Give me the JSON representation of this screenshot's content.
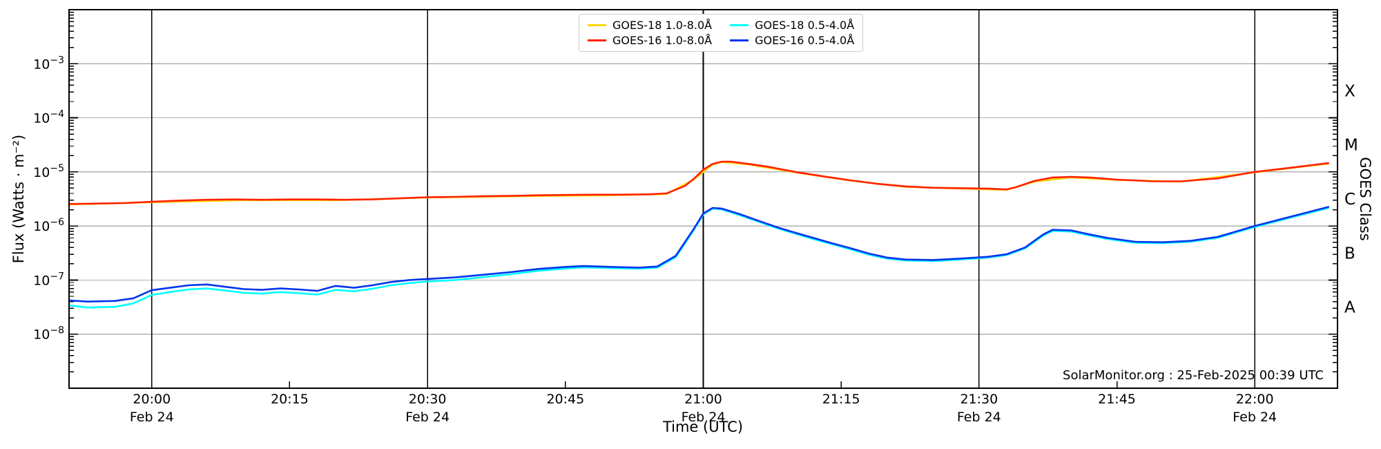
{
  "chart_data": {
    "type": "line",
    "xlabel": "Time (UTC)",
    "ylabel": "Flux (Watts · m⁻²)",
    "ylabel_right": "GOES Class",
    "annotation": "SolarMonitor.org : 25-Feb-2025 00:39 UTC",
    "grid": {
      "horizontal": true,
      "vertical": true
    },
    "legend_position": "top-center",
    "legend_columns": 2,
    "x_range": {
      "start": "19:51",
      "end": "22:09"
    },
    "y_log_range": {
      "top_exponent": -2,
      "bottom_exponent": -9
    },
    "y_tick_exponents": [
      -3,
      -4,
      -5,
      -6,
      -7,
      -8
    ],
    "x_ticks": [
      {
        "time": "20:00",
        "date": "Feb 24",
        "major": true
      },
      {
        "time": "20:15",
        "major": false
      },
      {
        "time": "20:30",
        "date": "Feb 24",
        "major": true
      },
      {
        "time": "20:45",
        "major": false
      },
      {
        "time": "21:00",
        "date": "Feb 24",
        "major": true
      },
      {
        "time": "21:15",
        "major": false
      },
      {
        "time": "21:30",
        "date": "Feb 24",
        "major": true
      },
      {
        "time": "21:45",
        "major": false
      },
      {
        "time": "22:00",
        "date": "Feb 24",
        "major": true
      }
    ],
    "goes_classes": [
      {
        "label": "A",
        "between_exponents": [
          -8,
          -7
        ]
      },
      {
        "label": "B",
        "between_exponents": [
          -7,
          -6
        ]
      },
      {
        "label": "C",
        "between_exponents": [
          -6,
          -5
        ]
      },
      {
        "label": "M",
        "between_exponents": [
          -5,
          -4
        ]
      },
      {
        "label": "X",
        "between_exponents": [
          -4,
          -3
        ]
      }
    ],
    "series": [
      {
        "name": "GOES-18 1.0-8.0Å",
        "color": "#ffd700",
        "points": [
          [
            "19:51",
            2.5e-06
          ],
          [
            "20:00",
            2.75e-06
          ],
          [
            "20:10",
            3e-06
          ],
          [
            "20:20",
            3e-06
          ],
          [
            "20:30",
            3.35e-06
          ],
          [
            "20:40",
            3.55e-06
          ],
          [
            "20:50",
            3.7e-06
          ],
          [
            "20:56",
            3.9e-06
          ],
          [
            "20:59",
            7.3e-06
          ],
          [
            "21:01",
            1.37e-05
          ],
          [
            "21:02",
            1.52e-05
          ],
          [
            "21:05",
            1.37e-05
          ],
          [
            "21:10",
            9.8e-06
          ],
          [
            "21:16",
            6.9e-06
          ],
          [
            "21:22",
            5.3e-06
          ],
          [
            "21:30",
            4.8e-06
          ],
          [
            "21:33",
            4.65e-06
          ],
          [
            "21:36",
            6.6e-06
          ],
          [
            "21:40",
            7.9e-06
          ],
          [
            "21:45",
            7.1e-06
          ],
          [
            "21:52",
            6.6e-06
          ],
          [
            "22:00",
            9.8e-06
          ],
          [
            "22:08",
            1.42e-05
          ]
        ]
      },
      {
        "name": "GOES-16 1.0-8.0Å",
        "color": "#ff2200",
        "points": [
          [
            "19:51",
            2.55e-06
          ],
          [
            "19:54",
            2.6e-06
          ],
          [
            "19:57",
            2.65e-06
          ],
          [
            "20:00",
            2.8e-06
          ],
          [
            "20:03",
            2.95e-06
          ],
          [
            "20:06",
            3.05e-06
          ],
          [
            "20:09",
            3.1e-06
          ],
          [
            "20:12",
            3.05e-06
          ],
          [
            "20:15",
            3.1e-06
          ],
          [
            "20:18",
            3.1e-06
          ],
          [
            "20:21",
            3.05e-06
          ],
          [
            "20:24",
            3.1e-06
          ],
          [
            "20:27",
            3.25e-06
          ],
          [
            "20:30",
            3.4e-06
          ],
          [
            "20:33",
            3.45e-06
          ],
          [
            "20:36",
            3.55e-06
          ],
          [
            "20:39",
            3.6e-06
          ],
          [
            "20:42",
            3.7e-06
          ],
          [
            "20:45",
            3.75e-06
          ],
          [
            "20:48",
            3.8e-06
          ],
          [
            "20:51",
            3.8e-06
          ],
          [
            "20:54",
            3.85e-06
          ],
          [
            "20:56",
            4e-06
          ],
          [
            "20:58",
            5.5e-06
          ],
          [
            "20:59",
            7.5e-06
          ],
          [
            "21:00",
            1.1e-05
          ],
          [
            "21:01",
            1.4e-05
          ],
          [
            "21:02",
            1.55e-05
          ],
          [
            "21:03",
            1.55e-05
          ],
          [
            "21:05",
            1.4e-05
          ],
          [
            "21:07",
            1.25e-05
          ],
          [
            "21:10",
            1e-05
          ],
          [
            "21:13",
            8.3e-06
          ],
          [
            "21:16",
            7e-06
          ],
          [
            "21:19",
            6e-06
          ],
          [
            "21:22",
            5.4e-06
          ],
          [
            "21:25",
            5.1e-06
          ],
          [
            "21:28",
            5e-06
          ],
          [
            "21:31",
            4.9e-06
          ],
          [
            "21:33",
            4.75e-06
          ],
          [
            "21:34",
            5.2e-06
          ],
          [
            "21:36",
            6.8e-06
          ],
          [
            "21:38",
            7.9e-06
          ],
          [
            "21:40",
            8.1e-06
          ],
          [
            "21:42",
            7.9e-06
          ],
          [
            "21:45",
            7.2e-06
          ],
          [
            "21:49",
            6.7e-06
          ],
          [
            "21:52",
            6.7e-06
          ],
          [
            "21:56",
            7.6e-06
          ],
          [
            "22:00",
            1e-05
          ],
          [
            "22:04",
            1.2e-05
          ],
          [
            "22:08",
            1.45e-05
          ]
        ]
      },
      {
        "name": "GOES-18 0.5-4.0Å",
        "color": "#00ffff",
        "points": [
          [
            "19:51",
            3.4e-08
          ],
          [
            "19:53",
            3.1e-08
          ],
          [
            "19:56",
            3.2e-08
          ],
          [
            "19:58",
            3.7e-08
          ],
          [
            "20:00",
            5.3e-08
          ],
          [
            "20:02",
            6e-08
          ],
          [
            "20:04",
            6.7e-08
          ],
          [
            "20:06",
            7e-08
          ],
          [
            "20:08",
            6.4e-08
          ],
          [
            "20:10",
            5.8e-08
          ],
          [
            "20:12",
            5.6e-08
          ],
          [
            "20:14",
            6e-08
          ],
          [
            "20:16",
            5.7e-08
          ],
          [
            "20:18",
            5.4e-08
          ],
          [
            "20:20",
            6.6e-08
          ],
          [
            "20:22",
            6.2e-08
          ],
          [
            "20:24",
            6.9e-08
          ],
          [
            "20:26",
            8e-08
          ],
          [
            "20:28",
            8.8e-08
          ],
          [
            "20:30",
            9.4e-08
          ],
          [
            "20:33",
            1e-07
          ],
          [
            "20:36",
            1.13e-07
          ],
          [
            "20:39",
            1.28e-07
          ],
          [
            "20:42",
            1.48e-07
          ],
          [
            "20:45",
            1.63e-07
          ],
          [
            "20:47",
            1.72e-07
          ],
          [
            "20:50",
            1.66e-07
          ],
          [
            "20:53",
            1.62e-07
          ],
          [
            "20:55",
            1.7e-07
          ],
          [
            "20:57",
            2.65e-07
          ],
          [
            "20:59",
            8.6e-07
          ],
          [
            "21:00",
            1.63e-06
          ],
          [
            "21:01",
            2.08e-06
          ],
          [
            "21:02",
            2.03e-06
          ],
          [
            "21:04",
            1.58e-06
          ],
          [
            "21:06",
            1.2e-06
          ],
          [
            "21:08",
            9.1e-07
          ],
          [
            "21:10",
            7.2e-07
          ],
          [
            "21:12",
            5.7e-07
          ],
          [
            "21:14",
            4.6e-07
          ],
          [
            "21:16",
            3.7e-07
          ],
          [
            "21:18",
            2.95e-07
          ],
          [
            "21:20",
            2.5e-07
          ],
          [
            "21:22",
            2.3e-07
          ],
          [
            "21:25",
            2.25e-07
          ],
          [
            "21:28",
            2.4e-07
          ],
          [
            "21:31",
            2.6e-07
          ],
          [
            "21:33",
            2.9e-07
          ],
          [
            "21:35",
            3.85e-07
          ],
          [
            "21:37",
            6.7e-07
          ],
          [
            "21:38",
            8.1e-07
          ],
          [
            "21:40",
            7.9e-07
          ],
          [
            "21:42",
            6.7e-07
          ],
          [
            "21:44",
            5.75e-07
          ],
          [
            "21:47",
            4.9e-07
          ],
          [
            "21:50",
            4.8e-07
          ],
          [
            "21:53",
            5.1e-07
          ],
          [
            "21:56",
            6.05e-07
          ],
          [
            "22:00",
            9.6e-07
          ],
          [
            "22:04",
            1.44e-06
          ],
          [
            "22:08",
            2.15e-06
          ]
        ]
      },
      {
        "name": "GOES-16 0.5-4.0Å",
        "color": "#0033ee",
        "points": [
          [
            "19:51",
            4.2e-08
          ],
          [
            "19:53",
            4e-08
          ],
          [
            "19:56",
            4.1e-08
          ],
          [
            "19:58",
            4.6e-08
          ],
          [
            "20:00",
            6.5e-08
          ],
          [
            "20:02",
            7.2e-08
          ],
          [
            "20:04",
            8e-08
          ],
          [
            "20:06",
            8.3e-08
          ],
          [
            "20:08",
            7.5e-08
          ],
          [
            "20:10",
            6.8e-08
          ],
          [
            "20:12",
            6.6e-08
          ],
          [
            "20:14",
            7e-08
          ],
          [
            "20:16",
            6.7e-08
          ],
          [
            "20:18",
            6.3e-08
          ],
          [
            "20:20",
            7.8e-08
          ],
          [
            "20:22",
            7.2e-08
          ],
          [
            "20:24",
            8e-08
          ],
          [
            "20:26",
            9.2e-08
          ],
          [
            "20:28",
            1e-07
          ],
          [
            "20:30",
            1.05e-07
          ],
          [
            "20:33",
            1.12e-07
          ],
          [
            "20:36",
            1.25e-07
          ],
          [
            "20:39",
            1.4e-07
          ],
          [
            "20:42",
            1.6e-07
          ],
          [
            "20:45",
            1.75e-07
          ],
          [
            "20:47",
            1.82e-07
          ],
          [
            "20:50",
            1.75e-07
          ],
          [
            "20:53",
            1.7e-07
          ],
          [
            "20:55",
            1.78e-07
          ],
          [
            "20:57",
            2.8e-07
          ],
          [
            "20:59",
            9e-07
          ],
          [
            "21:00",
            1.7e-06
          ],
          [
            "21:01",
            2.15e-06
          ],
          [
            "21:02",
            2.1e-06
          ],
          [
            "21:04",
            1.65e-06
          ],
          [
            "21:06",
            1.25e-06
          ],
          [
            "21:08",
            9.5e-07
          ],
          [
            "21:10",
            7.5e-07
          ],
          [
            "21:12",
            6e-07
          ],
          [
            "21:14",
            4.8e-07
          ],
          [
            "21:16",
            3.9e-07
          ],
          [
            "21:18",
            3.1e-07
          ],
          [
            "21:20",
            2.6e-07
          ],
          [
            "21:22",
            2.4e-07
          ],
          [
            "21:25",
            2.35e-07
          ],
          [
            "21:28",
            2.5e-07
          ],
          [
            "21:31",
            2.7e-07
          ],
          [
            "21:33",
            3e-07
          ],
          [
            "21:35",
            4e-07
          ],
          [
            "21:37",
            7e-07
          ],
          [
            "21:38",
            8.5e-07
          ],
          [
            "21:40",
            8.3e-07
          ],
          [
            "21:42",
            7e-07
          ],
          [
            "21:44",
            6e-07
          ],
          [
            "21:47",
            5.1e-07
          ],
          [
            "21:50",
            5e-07
          ],
          [
            "21:53",
            5.3e-07
          ],
          [
            "21:56",
            6.3e-07
          ],
          [
            "22:00",
            1e-06
          ],
          [
            "22:04",
            1.5e-06
          ],
          [
            "22:08",
            2.25e-06
          ]
        ]
      }
    ]
  }
}
